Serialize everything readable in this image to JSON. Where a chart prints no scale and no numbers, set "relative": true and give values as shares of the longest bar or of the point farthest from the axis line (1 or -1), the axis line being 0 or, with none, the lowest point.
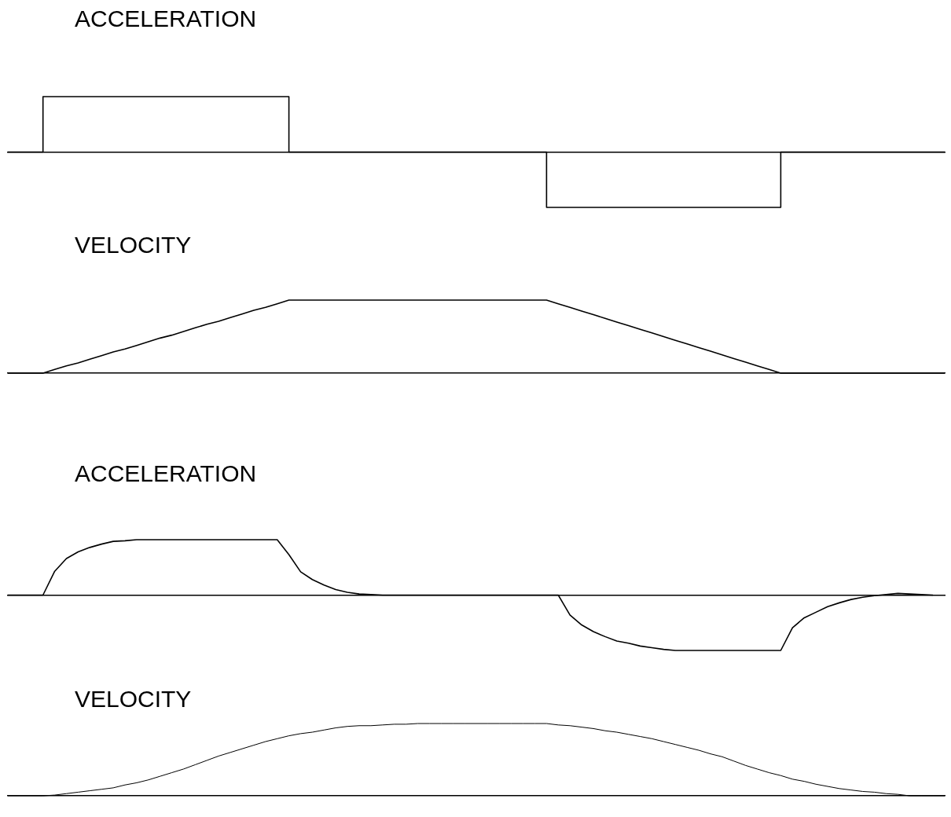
{
  "chart_data": [
    {
      "type": "step",
      "title": "ACCELERATION",
      "relative": true,
      "categories": [
        null,
        null,
        null,
        null,
        null,
        null,
        null,
        null,
        null,
        null,
        null,
        null,
        null,
        null,
        null,
        null,
        null,
        null,
        null,
        null,
        null,
        null,
        null,
        null,
        null,
        null,
        null,
        null,
        null,
        null,
        null,
        null,
        null,
        null,
        null,
        null,
        null,
        null,
        null,
        null,
        null,
        null,
        null,
        null,
        null,
        null,
        null,
        null,
        null,
        null,
        null,
        null,
        null,
        null,
        null,
        null,
        null,
        null,
        null,
        null,
        null,
        null,
        null,
        null,
        null,
        null,
        null,
        null,
        null,
        null,
        null,
        null,
        null,
        null,
        null,
        null,
        null,
        null,
        null,
        null,
        null
      ],
      "series": [
        {
          "color": "#000000",
          "values": [
            0,
            0,
            0,
            1,
            1,
            1,
            1,
            1,
            1,
            1,
            1,
            1,
            1,
            1,
            1,
            1,
            1,
            1,
            1,
            1,
            1,
            1,
            1,
            1,
            0,
            0,
            0,
            0,
            0,
            0,
            0,
            0,
            0,
            0,
            0,
            0,
            0,
            0,
            0,
            0,
            0,
            0,
            0,
            0,
            0,
            0,
            -1,
            -1,
            -1,
            -1,
            -1,
            -1,
            -1,
            -1,
            -1,
            -1,
            -1,
            -1,
            -1,
            -1,
            -1,
            -1,
            -1,
            -1,
            -1,
            -1,
            0,
            0,
            0,
            0,
            0,
            0,
            0,
            0,
            0,
            0,
            0,
            0,
            0,
            0,
            0
          ]
        }
      ]
    },
    {
      "type": "line",
      "title": "VELOCITY",
      "relative": true,
      "categories": [
        null,
        null,
        null,
        null,
        null,
        null,
        null,
        null,
        null,
        null,
        null,
        null,
        null,
        null,
        null,
        null,
        null,
        null,
        null,
        null,
        null,
        null,
        null,
        null,
        null,
        null,
        null,
        null,
        null,
        null,
        null,
        null,
        null,
        null,
        null,
        null,
        null,
        null,
        null,
        null,
        null,
        null,
        null,
        null,
        null,
        null,
        null,
        null,
        null,
        null,
        null,
        null,
        null,
        null,
        null,
        null,
        null,
        null,
        null,
        null,
        null,
        null,
        null,
        null,
        null,
        null,
        null,
        null,
        null,
        null,
        null,
        null,
        null,
        null,
        null,
        null,
        null,
        null,
        null,
        null,
        null
      ],
      "series": [
        {
          "color": "#000000",
          "values": [
            0,
            0,
            0,
            0,
            0.05,
            0.1,
            0.14,
            0.19,
            0.24,
            0.29,
            0.33,
            0.38,
            0.43,
            0.48,
            0.52,
            0.57,
            0.62,
            0.67,
            0.71,
            0.76,
            0.81,
            0.86,
            0.9,
            0.95,
            1,
            1,
            1,
            1,
            1,
            1,
            1,
            1,
            1,
            1,
            1,
            1,
            1,
            1,
            1,
            1,
            1,
            1,
            1,
            1,
            1,
            1,
            1,
            0.95,
            0.9,
            0.85,
            0.8,
            0.75,
            0.7,
            0.65,
            0.6,
            0.55,
            0.5,
            0.45,
            0.4,
            0.35,
            0.3,
            0.25,
            0.2,
            0.15,
            0.1,
            0.05,
            0,
            0,
            0,
            0,
            0,
            0,
            0,
            0,
            0,
            0,
            0,
            0,
            0,
            0,
            0
          ]
        }
      ]
    },
    {
      "type": "line",
      "title": "ACCELERATION",
      "relative": true,
      "categories": [
        null,
        null,
        null,
        null,
        null,
        null,
        null,
        null,
        null,
        null,
        null,
        null,
        null,
        null,
        null,
        null,
        null,
        null,
        null,
        null,
        null,
        null,
        null,
        null,
        null,
        null,
        null,
        null,
        null,
        null,
        null,
        null,
        null,
        null,
        null,
        null,
        null,
        null,
        null,
        null,
        null,
        null,
        null,
        null,
        null,
        null,
        null,
        null,
        null,
        null,
        null,
        null,
        null,
        null,
        null,
        null,
        null,
        null,
        null,
        null,
        null,
        null,
        null,
        null,
        null,
        null,
        null,
        null,
        null,
        null,
        null,
        null,
        null,
        null,
        null,
        null,
        null,
        null,
        null,
        null,
        null
      ],
      "series": [
        {
          "color": "#000000",
          "values": [
            0,
            0,
            0,
            0,
            0.43,
            0.66,
            0.78,
            0.86,
            0.92,
            0.97,
            0.98,
            1,
            1,
            1,
            1,
            1,
            1,
            1,
            1,
            1,
            1,
            1,
            1,
            1,
            0.73,
            0.42,
            0.28,
            0.18,
            0.1,
            0.05,
            0.02,
            0.01,
            0,
            0,
            0,
            0,
            0,
            0,
            0,
            0,
            0,
            0,
            0,
            0,
            0,
            0,
            0,
            0,
            -0.36,
            -0.54,
            -0.66,
            -0.75,
            -0.83,
            -0.87,
            -0.92,
            -0.95,
            -0.98,
            -1,
            -1,
            -1,
            -1,
            -1,
            -1,
            -1,
            -1,
            -1,
            -1,
            -0.59,
            -0.41,
            -0.31,
            -0.21,
            -0.14,
            -0.08,
            -0.04,
            -0.01,
            0.01,
            0.03,
            0.02,
            0.01,
            0,
            null
          ]
        }
      ]
    },
    {
      "type": "line",
      "title": "VELOCITY",
      "relative": true,
      "categories": [
        null,
        null,
        null,
        null,
        null,
        null,
        null,
        null,
        null,
        null,
        null,
        null,
        null,
        null,
        null,
        null,
        null,
        null,
        null,
        null,
        null,
        null,
        null,
        null,
        null,
        null,
        null,
        null,
        null,
        null,
        null,
        null,
        null,
        null,
        null,
        null,
        null,
        null,
        null,
        null,
        null,
        null,
        null,
        null,
        null,
        null,
        null,
        null,
        null,
        null,
        null,
        null,
        null,
        null,
        null,
        null,
        null,
        null,
        null,
        null,
        null,
        null,
        null,
        null,
        null,
        null,
        null,
        null,
        null,
        null,
        null,
        null,
        null,
        null,
        null,
        null,
        null,
        null,
        null,
        null,
        null
      ],
      "series": [
        {
          "color": "#000000",
          "values": [
            0,
            0,
            0,
            0,
            0.01,
            0.03,
            0.05,
            0.07,
            0.09,
            0.11,
            0.15,
            0.18,
            0.22,
            0.27,
            0.32,
            0.37,
            0.43,
            0.49,
            0.55,
            0.6,
            0.65,
            0.7,
            0.75,
            0.79,
            0.83,
            0.86,
            0.88,
            0.91,
            0.94,
            0.96,
            0.97,
            0.97,
            0.98,
            0.99,
            0.99,
            1,
            1,
            1,
            1,
            1,
            1,
            1,
            1,
            1,
            1,
            1,
            1,
            0.98,
            0.97,
            0.95,
            0.93,
            0.9,
            0.88,
            0.85,
            0.82,
            0.79,
            0.75,
            0.71,
            0.67,
            0.63,
            0.58,
            0.54,
            0.48,
            0.42,
            0.37,
            0.32,
            0.28,
            0.23,
            0.2,
            0.16,
            0.13,
            0.1,
            0.08,
            0.06,
            0.05,
            0.03,
            0.02,
            0,
            0,
            0,
            0
          ]
        }
      ]
    }
  ]
}
